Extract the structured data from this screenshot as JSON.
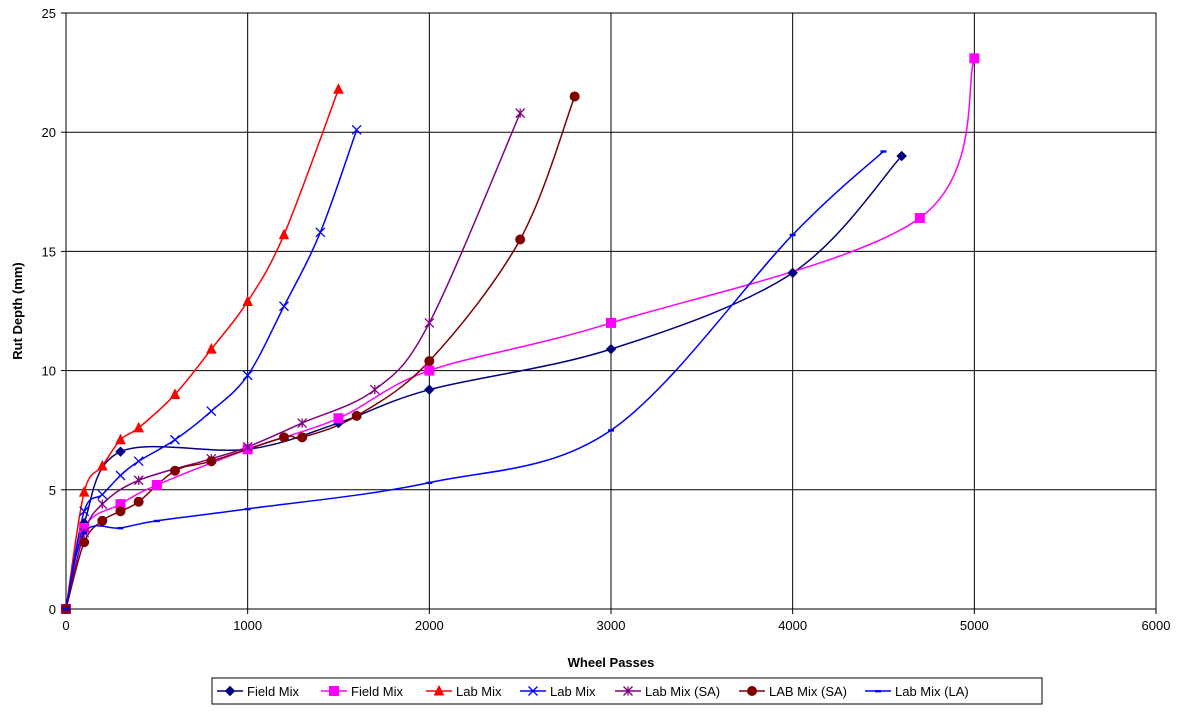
{
  "chart_data": {
    "type": "line",
    "title": "",
    "xlabel": "Wheel Passes",
    "ylabel": "Rut Depth (mm)",
    "xlim": [
      0,
      6000
    ],
    "ylim": [
      0,
      25
    ],
    "x_ticks": [
      0,
      1000,
      2000,
      3000,
      4000,
      5000,
      6000
    ],
    "y_ticks": [
      0,
      5,
      10,
      15,
      20,
      25
    ],
    "grid": true,
    "legend_position": "bottom",
    "series": [
      {
        "name": "Field Mix",
        "color": "#000080",
        "marker": "diamond",
        "x": [
          0,
          100,
          300,
          1000,
          1500,
          2000,
          3000,
          4000,
          4600
        ],
        "y": [
          0,
          3.6,
          6.6,
          6.7,
          7.8,
          9.2,
          10.9,
          14.1,
          19.0
        ]
      },
      {
        "name": "Field Mix",
        "color": "#ff00ff",
        "marker": "square",
        "x": [
          0,
          100,
          300,
          500,
          1000,
          1500,
          2000,
          3000,
          4700,
          5000
        ],
        "y": [
          0,
          3.4,
          4.4,
          5.2,
          6.7,
          8.0,
          10.0,
          12.0,
          16.4,
          23.1
        ]
      },
      {
        "name": "Lab Mix",
        "color": "#ff0000",
        "marker": "triangle",
        "x": [
          0,
          100,
          200,
          300,
          400,
          600,
          800,
          1000,
          1200,
          1500
        ],
        "y": [
          0,
          4.9,
          6.0,
          7.1,
          7.6,
          9.0,
          10.9,
          12.9,
          15.7,
          21.8
        ]
      },
      {
        "name": "Lab Mix",
        "color": "#0000ff",
        "marker": "x",
        "x": [
          0,
          100,
          200,
          300,
          400,
          600,
          800,
          1000,
          1200,
          1400,
          1600
        ],
        "y": [
          0,
          4.1,
          4.8,
          5.6,
          6.2,
          7.1,
          8.3,
          9.8,
          12.7,
          15.8,
          20.1
        ]
      },
      {
        "name": "Lab Mix (SA)",
        "color": "#800080",
        "marker": "star",
        "x": [
          0,
          100,
          200,
          400,
          800,
          1000,
          1300,
          1700,
          2000,
          2500
        ],
        "y": [
          0,
          3.2,
          4.4,
          5.4,
          6.3,
          6.8,
          7.8,
          9.2,
          12.0,
          20.8
        ]
      },
      {
        "name": "LAB Mix (SA)",
        "color": "#800000",
        "marker": "circle",
        "x": [
          0,
          100,
          200,
          300,
          400,
          600,
          800,
          1200,
          1300,
          1600,
          2000,
          2500,
          2800
        ],
        "y": [
          0,
          2.8,
          3.7,
          4.1,
          4.5,
          5.8,
          6.2,
          7.2,
          7.2,
          8.1,
          10.4,
          15.5,
          21.5
        ]
      },
      {
        "name": "Lab Mix (LA)",
        "color": "#0000ff",
        "marker": "dash",
        "x": [
          0,
          100,
          300,
          500,
          1000,
          2000,
          3000,
          4000,
          4500
        ],
        "y": [
          0,
          3.2,
          3.4,
          3.7,
          4.2,
          5.3,
          7.5,
          15.7,
          19.2
        ]
      }
    ]
  }
}
